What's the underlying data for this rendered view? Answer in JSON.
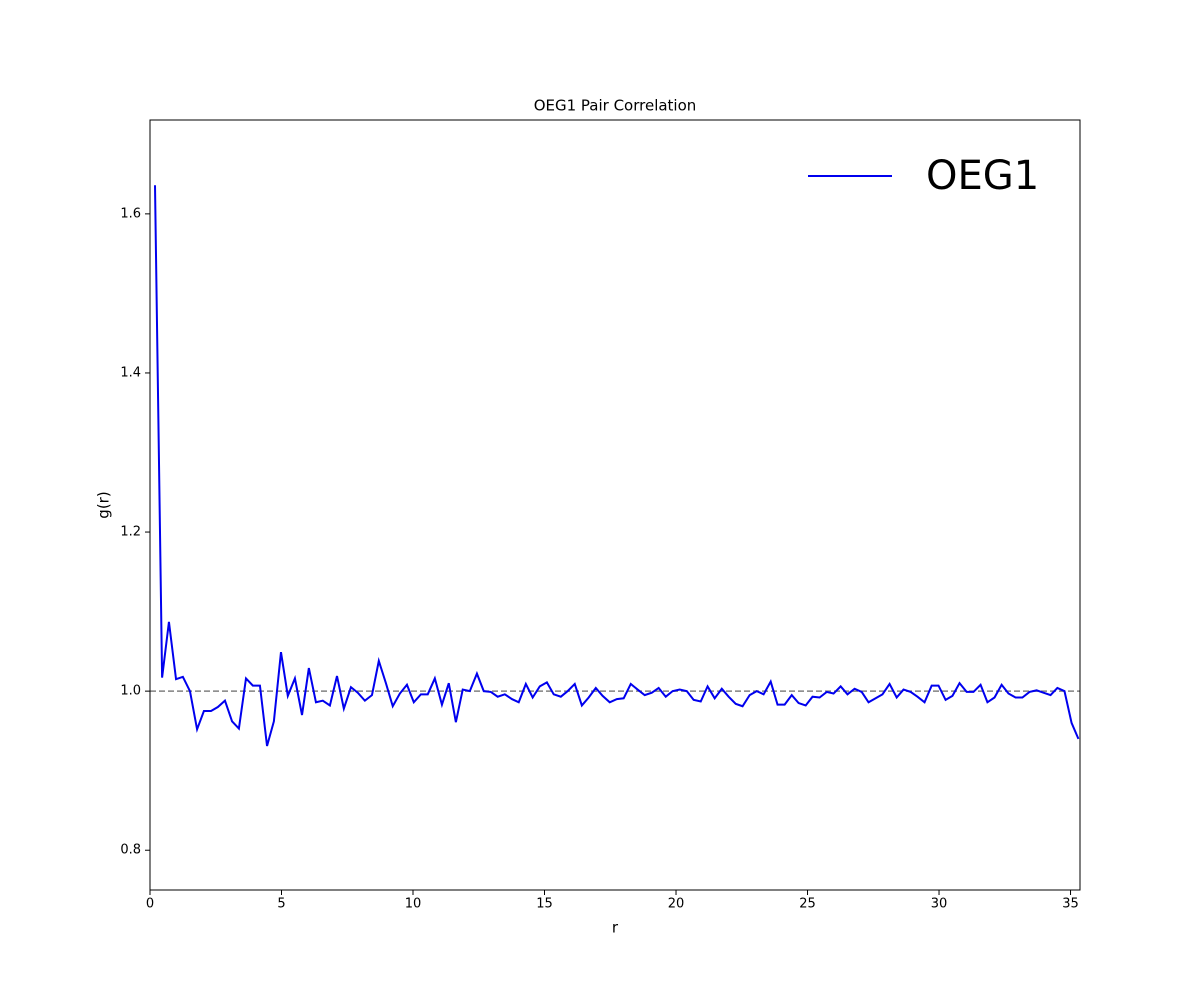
{
  "chart_data": {
    "type": "line",
    "title": "OEG1 Pair Correlation",
    "xlabel": "r",
    "ylabel": "g(r)",
    "x": [
      0.19,
      0.46,
      0.72,
      0.99,
      1.25,
      1.52,
      1.79,
      2.05,
      2.32,
      2.58,
      2.85,
      3.12,
      3.38,
      3.65,
      3.91,
      4.18,
      4.45,
      4.71,
      4.98,
      5.24,
      5.51,
      5.78,
      6.04,
      6.31,
      6.57,
      6.84,
      7.11,
      7.37,
      7.64,
      7.9,
      8.17,
      8.44,
      8.7,
      8.97,
      9.23,
      9.5,
      9.77,
      10.03,
      10.3,
      10.56,
      10.83,
      11.1,
      11.36,
      11.63,
      11.89,
      12.16,
      12.43,
      12.69,
      12.96,
      13.22,
      13.49,
      13.76,
      14.02,
      14.29,
      14.55,
      14.82,
      15.09,
      15.35,
      15.62,
      15.88,
      16.15,
      16.42,
      16.68,
      16.95,
      17.21,
      17.48,
      17.75,
      18.01,
      18.28,
      18.54,
      18.81,
      19.08,
      19.34,
      19.61,
      19.87,
      20.14,
      20.41,
      20.67,
      20.94,
      21.2,
      21.47,
      21.74,
      22.0,
      22.27,
      22.53,
      22.8,
      23.07,
      23.33,
      23.6,
      23.86,
      24.13,
      24.4,
      24.66,
      24.93,
      25.19,
      25.46,
      25.73,
      25.99,
      26.26,
      26.52,
      26.79,
      27.06,
      27.32,
      27.59,
      27.85,
      28.12,
      28.39,
      28.65,
      28.92,
      29.18,
      29.45,
      29.72,
      29.98,
      30.25,
      30.51,
      30.78,
      31.05,
      31.31,
      31.58,
      31.84,
      32.11,
      32.38,
      32.64,
      32.91,
      33.17,
      33.44,
      33.71,
      33.97,
      34.24,
      34.5,
      34.77,
      35.04,
      35.3
    ],
    "series": [
      {
        "name": "OEG1",
        "color": "#0000ee",
        "values": [
          1.636,
          1.017,
          1.087,
          1.015,
          1.018,
          1.0,
          0.952,
          0.975,
          0.975,
          0.98,
          0.988,
          0.962,
          0.953,
          1.016,
          1.007,
          1.007,
          0.931,
          0.962,
          1.049,
          0.994,
          1.016,
          0.97,
          1.029,
          0.986,
          0.988,
          0.982,
          1.019,
          0.978,
          1.005,
          0.998,
          0.988,
          0.995,
          1.038,
          1.01,
          0.981,
          0.997,
          1.008,
          0.986,
          0.996,
          0.996,
          1.016,
          0.983,
          1.01,
          0.961,
          1.002,
          1.0,
          1.022,
          1.0,
          0.999,
          0.993,
          0.996,
          0.99,
          0.986,
          1.009,
          0.992,
          1.006,
          1.011,
          0.996,
          0.993,
          1.0,
          1.009,
          0.982,
          0.992,
          1.004,
          0.994,
          0.986,
          0.99,
          0.991,
          1.009,
          1.002,
          0.995,
          0.998,
          1.004,
          0.993,
          1.0,
          1.002,
          1.0,
          0.989,
          0.987,
          1.006,
          0.991,
          1.003,
          0.993,
          0.984,
          0.981,
          0.995,
          1.0,
          0.996,
          1.012,
          0.983,
          0.983,
          0.995,
          0.985,
          0.982,
          0.993,
          0.992,
          0.999,
          0.997,
          1.006,
          0.996,
          1.003,
          0.999,
          0.986,
          0.991,
          0.996,
          1.009,
          0.992,
          1.002,
          0.999,
          0.993,
          0.986,
          1.007,
          1.007,
          0.989,
          0.994,
          1.01,
          0.999,
          0.999,
          1.008,
          0.986,
          0.992,
          1.008,
          0.997,
          0.992,
          0.992,
          0.999,
          1.001,
          0.998,
          0.995,
          1.004,
          1.0,
          0.96,
          0.94
        ]
      }
    ],
    "hline": {
      "value": 1,
      "color": "#808080"
    },
    "xlim": [
      0,
      35.36
    ],
    "xticks": [
      0,
      5,
      10,
      15,
      20,
      25,
      30,
      35
    ],
    "ylim": [
      0.75,
      1.718
    ],
    "yticks": [
      0.8,
      {
        "value": 1,
        "label": "1.0"
      },
      1.2,
      1.4,
      1.6
    ],
    "legend": "upper right"
  }
}
